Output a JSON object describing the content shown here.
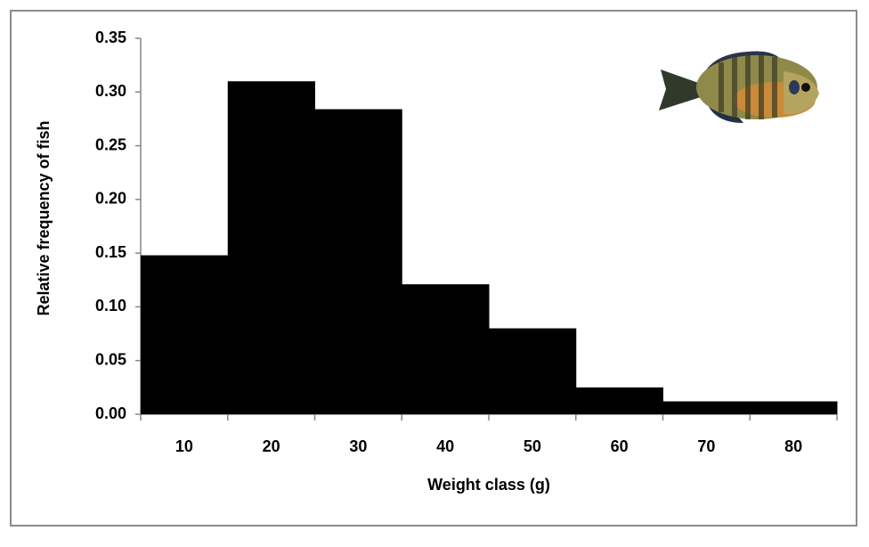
{
  "chart_data": {
    "type": "bar",
    "x_label": "Weight class (g)",
    "y_label": "Relative frequency of fish",
    "categories": [
      "10",
      "20",
      "30",
      "40",
      "50",
      "60",
      "70",
      "80"
    ],
    "values": [
      0.148,
      0.31,
      0.284,
      0.121,
      0.08,
      0.025,
      0.012,
      0.012
    ],
    "color": "#000000",
    "ylim": [
      0,
      0.35
    ],
    "yticks": [
      {
        "value": 0,
        "label": "0.00"
      },
      {
        "value": 0.05,
        "label": "0.05"
      },
      {
        "value": 0.1,
        "label": "0.10"
      },
      {
        "value": 0.15,
        "label": "0.15"
      },
      {
        "value": 0.2,
        "label": "0.20"
      },
      {
        "value": 0.25,
        "label": "0.25"
      },
      {
        "value": 0.3,
        "label": "0.30"
      },
      {
        "value": 0.35,
        "label": "0.35"
      }
    ],
    "grid": false
  }
}
